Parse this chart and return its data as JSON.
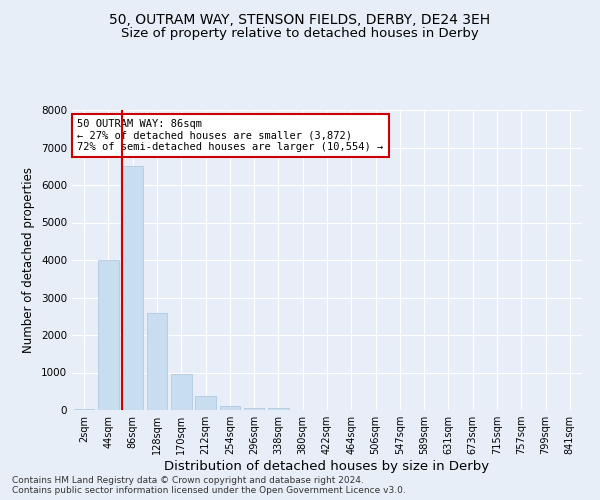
{
  "title_line1": "50, OUTRAM WAY, STENSON FIELDS, DERBY, DE24 3EH",
  "title_line2": "Size of property relative to detached houses in Derby",
  "xlabel": "Distribution of detached houses by size in Derby",
  "ylabel": "Number of detached properties",
  "categories": [
    "2sqm",
    "44sqm",
    "86sqm",
    "128sqm",
    "170sqm",
    "212sqm",
    "254sqm",
    "296sqm",
    "338sqm",
    "380sqm",
    "422sqm",
    "464sqm",
    "506sqm",
    "547sqm",
    "589sqm",
    "631sqm",
    "673sqm",
    "715sqm",
    "757sqm",
    "799sqm",
    "841sqm"
  ],
  "values": [
    30,
    4000,
    6500,
    2600,
    950,
    370,
    120,
    60,
    55,
    0,
    0,
    0,
    0,
    0,
    0,
    0,
    0,
    0,
    0,
    0,
    0
  ],
  "bar_color": "#c9ddf0",
  "bar_edge_color": "#a8c4e0",
  "vline_color": "#cc0000",
  "annotation_text": "50 OUTRAM WAY: 86sqm\n← 27% of detached houses are smaller (3,872)\n72% of semi-detached houses are larger (10,554) →",
  "annotation_box_color": "#ffffff",
  "annotation_box_edgecolor": "#cc0000",
  "ylim": [
    0,
    8000
  ],
  "yticks": [
    0,
    1000,
    2000,
    3000,
    4000,
    5000,
    6000,
    7000,
    8000
  ],
  "footnote": "Contains HM Land Registry data © Crown copyright and database right 2024.\nContains public sector information licensed under the Open Government Licence v3.0.",
  "background_color": "#e8eef8",
  "plot_bg_color": "#e8eef8",
  "grid_color": "#ffffff",
  "title_fontsize": 10,
  "subtitle_fontsize": 9.5,
  "tick_fontsize": 7,
  "ylabel_fontsize": 8.5,
  "xlabel_fontsize": 9.5,
  "footnote_fontsize": 6.5
}
